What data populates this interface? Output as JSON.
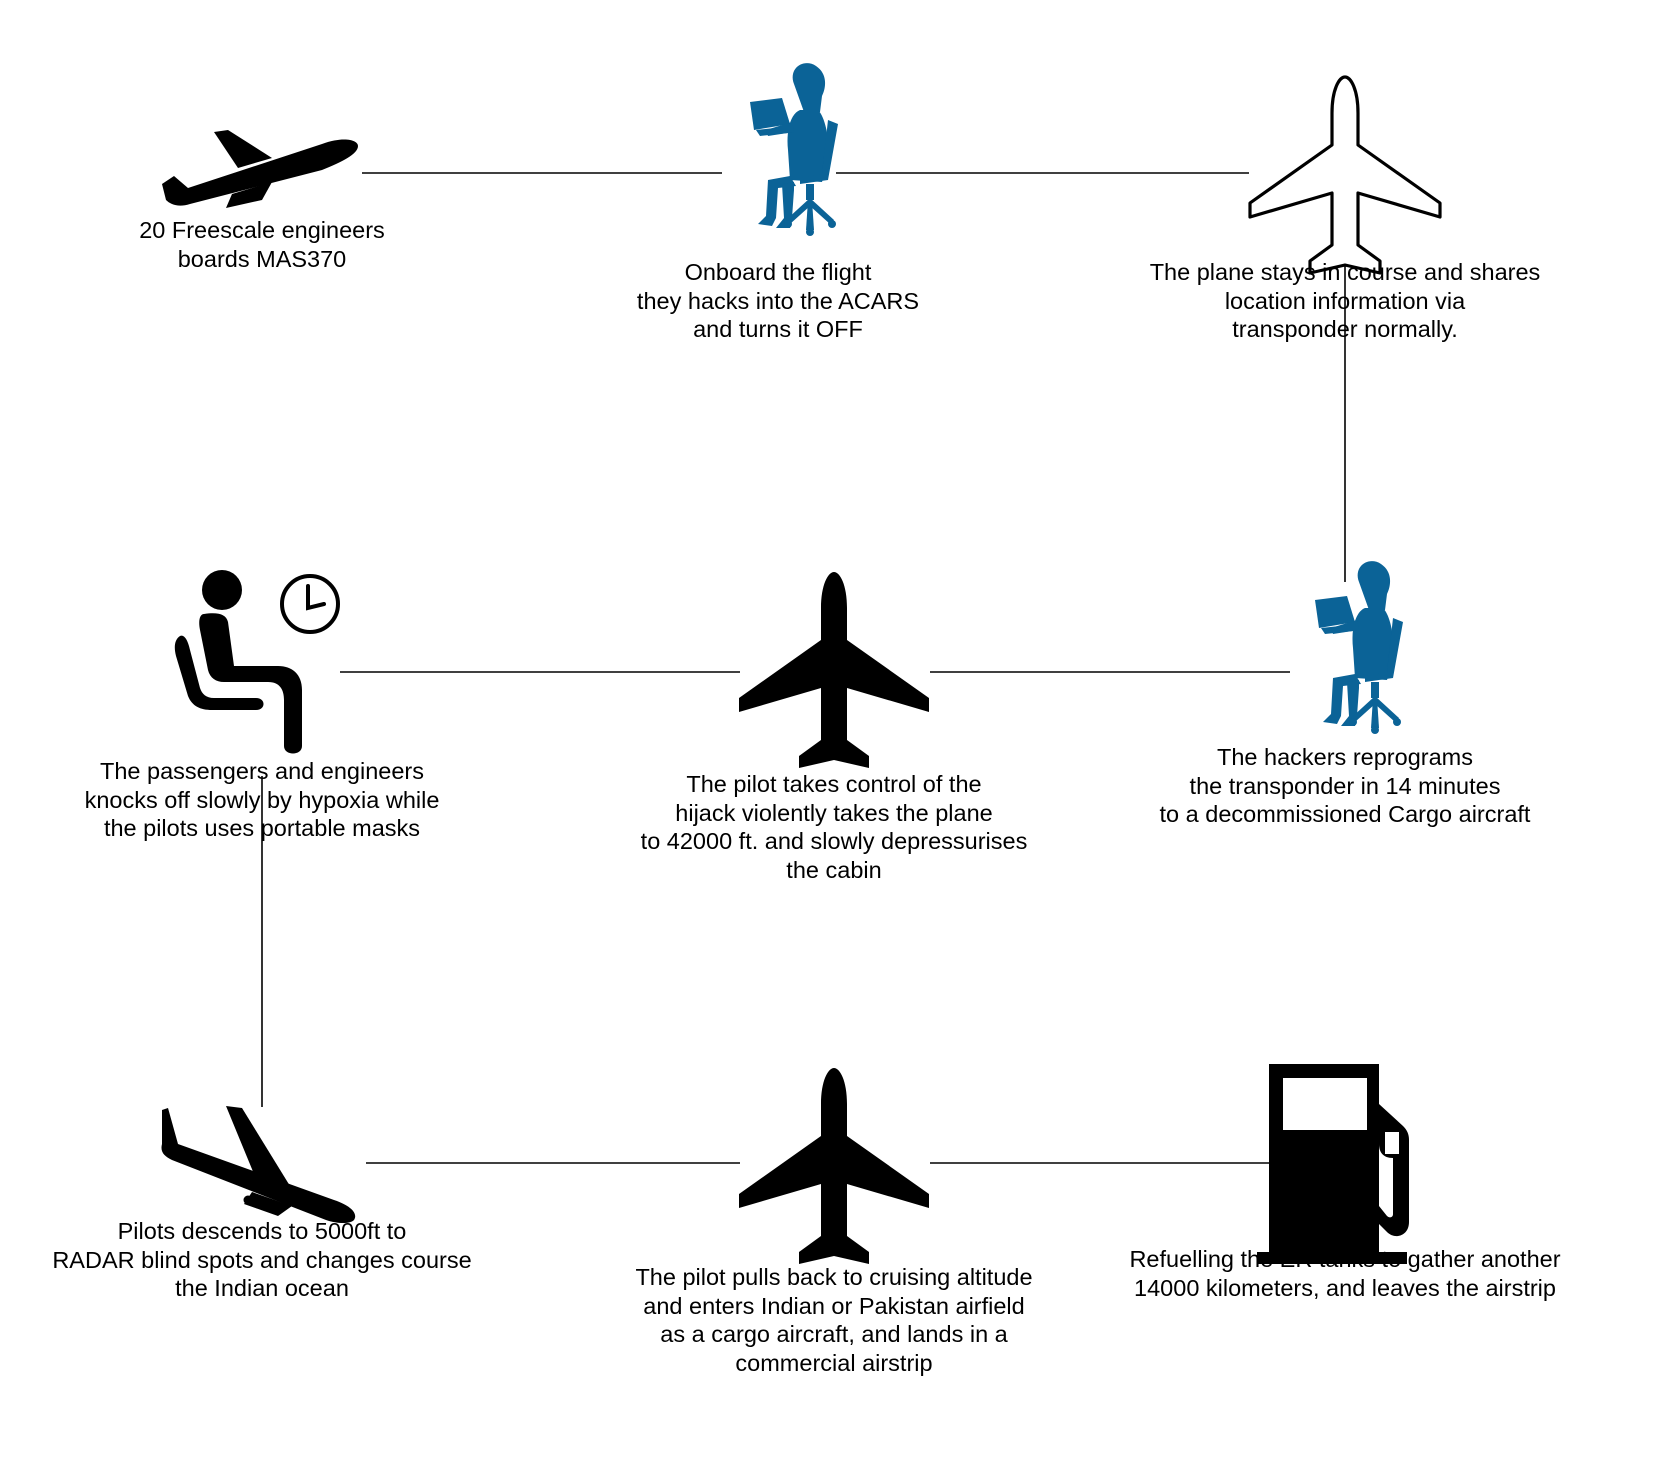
{
  "colors": {
    "icon_dark": "#000000",
    "icon_blue": "#0b6397",
    "line": "#000000"
  },
  "nodes": [
    {
      "id": "n1",
      "icon": "airplane-takeoff-icon",
      "lines": [
        "20 Freescale engineers",
        "boards MAS370"
      ]
    },
    {
      "id": "n2",
      "icon": "hacker-with-laptop-icon",
      "lines": [
        "Onboard the flight",
        "they hacks into the ACARS",
        "and turns it OFF"
      ]
    },
    {
      "id": "n3",
      "icon": "airplane-outline-icon",
      "lines": [
        "The plane stays in course and shares",
        "location information via",
        "transponder normally."
      ]
    },
    {
      "id": "n4",
      "icon": "hacker-with-laptop-icon",
      "lines": [
        "The hackers reprograms",
        "the transponder in 14 minutes",
        "to a decommissioned Cargo aircraft"
      ]
    },
    {
      "id": "n5",
      "icon": "airplane-icon",
      "lines": [
        "The pilot takes control of the",
        "hijack violently takes the plane",
        "to 42000 ft. and slowly depressurises",
        "the cabin"
      ]
    },
    {
      "id": "n6",
      "icon": "waiting-passenger-clock-icon",
      "lines": [
        "The passengers and engineers",
        "knocks off slowly by hypoxia while",
        "the pilots uses portable masks"
      ]
    },
    {
      "id": "n7",
      "icon": "airplane-landing-icon",
      "lines": [
        "Pilots descends to 5000ft to",
        "RADAR blind spots and changes course",
        "the Indian ocean"
      ]
    },
    {
      "id": "n8",
      "icon": "airplane-icon",
      "lines": [
        "The pilot pulls back to cruising altitude",
        "and enters Indian or Pakistan airfield",
        "as a cargo aircraft, and lands in a",
        "commercial airstrip"
      ]
    },
    {
      "id": "n9",
      "icon": "fuel-pump-icon",
      "lines": [
        "Refuelling the ER tanks to gather another",
        "14000 kilometers, and leaves the airstrip"
      ]
    }
  ],
  "edges": [
    {
      "from": "n1",
      "to": "n2"
    },
    {
      "from": "n2",
      "to": "n3"
    },
    {
      "from": "n3",
      "to": "n4"
    },
    {
      "from": "n4",
      "to": "n5"
    },
    {
      "from": "n5",
      "to": "n6"
    },
    {
      "from": "n6",
      "to": "n7"
    },
    {
      "from": "n7",
      "to": "n8"
    },
    {
      "from": "n8",
      "to": "n9"
    }
  ]
}
